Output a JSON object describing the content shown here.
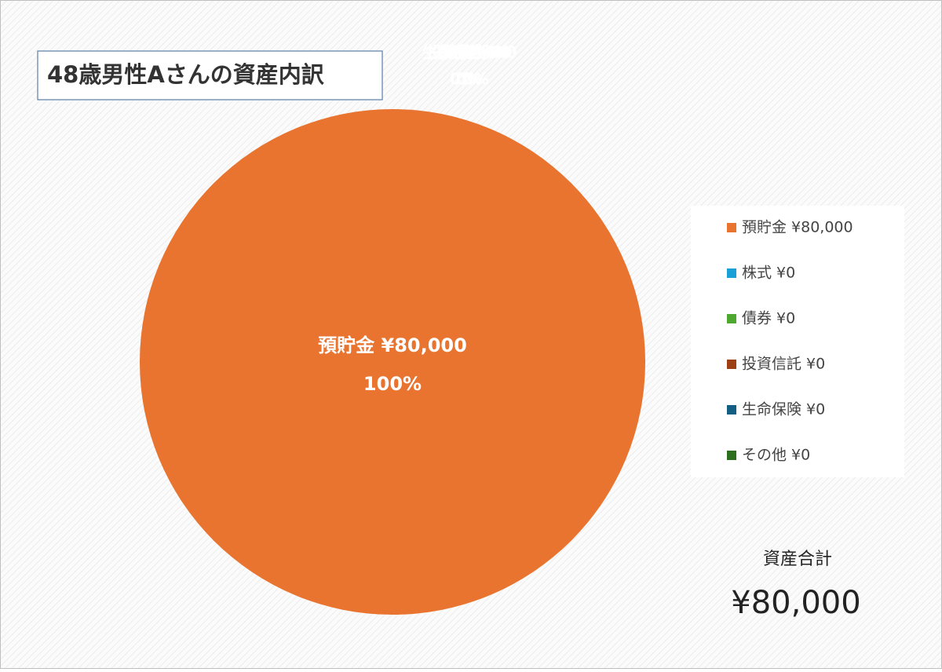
{
  "chart_data": {
    "type": "pie",
    "title": "48歳男性Aさんの資産内訳",
    "categories": [
      "預貯金 ¥80,000",
      "株式 ¥0",
      "債券 ¥0",
      "投資信託 ¥0",
      "生命保険 ¥0",
      "その他 ¥0"
    ],
    "values": [
      80000,
      0,
      0,
      0,
      0,
      0
    ],
    "percentages": [
      100,
      0,
      0,
      0,
      0,
      0
    ],
    "percentage_labels": [
      "100%",
      "0%",
      "0%",
      "0%",
      "0%",
      "0%"
    ],
    "colors": [
      "#e8742f",
      "#1a9fd6",
      "#4ea72e",
      "#9c3f14",
      "#135f84",
      "#2e6e1f"
    ],
    "legend": "right"
  },
  "total": {
    "label": "資産合計",
    "value": "¥80,000"
  }
}
